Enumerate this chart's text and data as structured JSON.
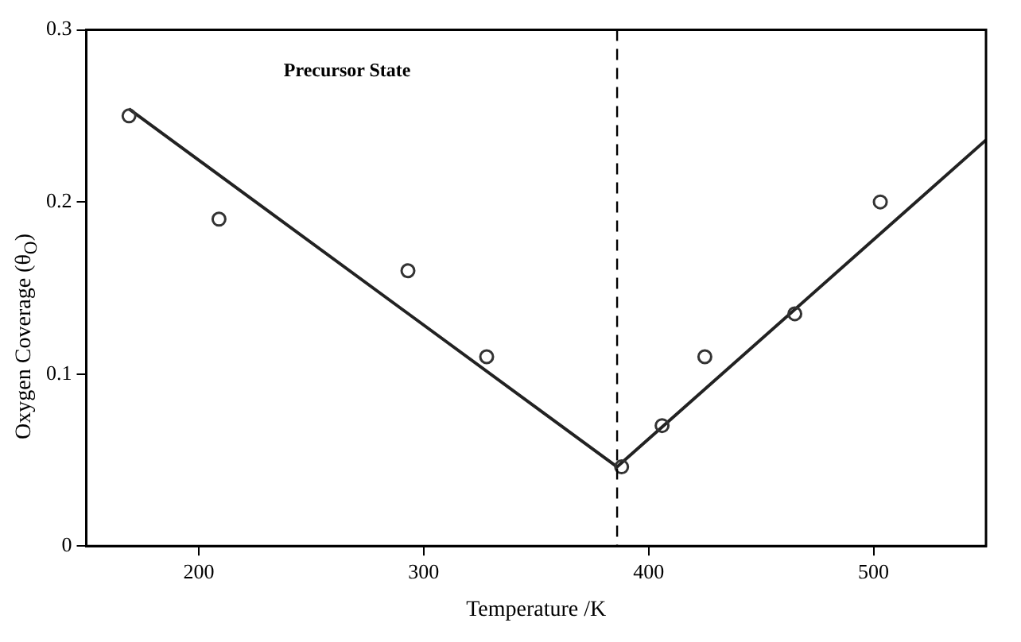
{
  "chart_data": {
    "type": "scatter",
    "xlabel": "Temperature /K",
    "ylabel": "Oxygen Coverage (θ$_{O}$)",
    "xlim": [
      150,
      550
    ],
    "ylim": [
      0,
      0.3
    ],
    "xticks": [
      200,
      300,
      400,
      500
    ],
    "yticks": [
      0,
      0.1,
      0.2,
      0.3
    ],
    "grid": false,
    "legend": false,
    "marker": "circle",
    "annotations": [
      "Precursor State"
    ],
    "ref_lines": [
      {
        "axis": "x",
        "value": 386,
        "line_style": "dashed",
        "color": "#000000"
      }
    ],
    "series": [
      {
        "color": "#333333",
        "x": [
          169,
          209,
          293,
          328,
          388,
          406,
          425,
          465,
          503
        ],
        "values": [
          0.25,
          0.19,
          0.16,
          0.11,
          0.046,
          0.07,
          0.11,
          0.135,
          0.2
        ]
      },
      {
        "type": "line",
        "color": "#222222",
        "marker": "none",
        "line_style": "solid",
        "x": [
          169,
          386,
          550
        ],
        "values": [
          0.254,
          0.046,
          0.236
        ]
      }
    ]
  }
}
